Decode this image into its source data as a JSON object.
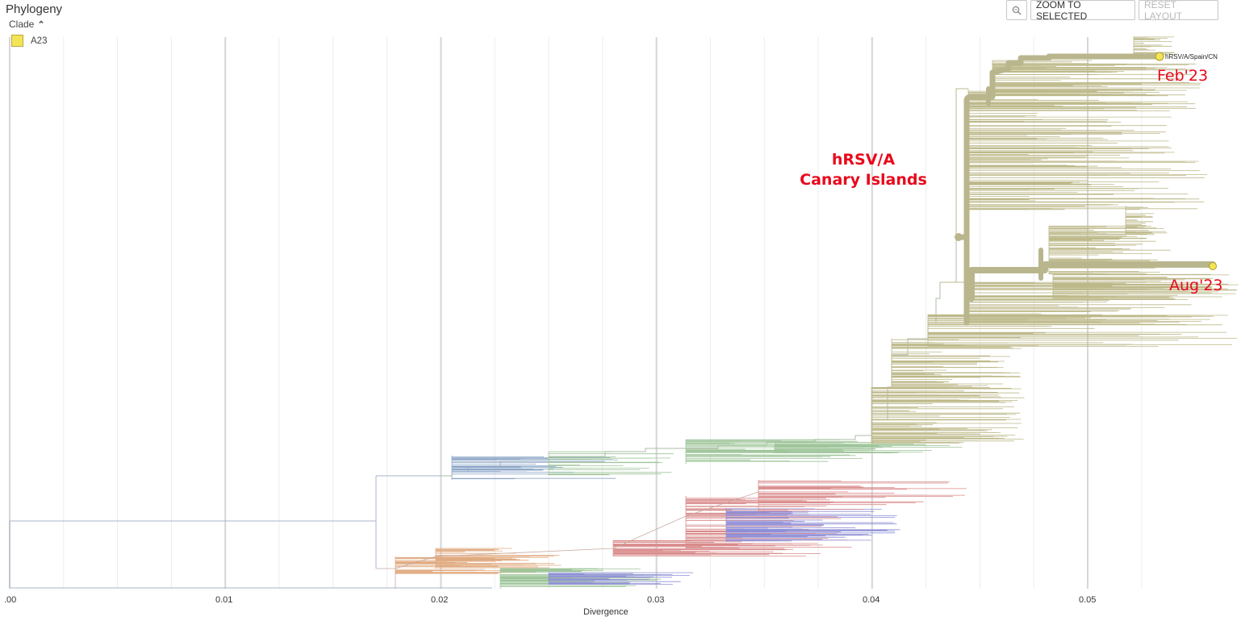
{
  "panel": {
    "title": "Phylogeny",
    "clade_toggle_label": "Clade",
    "legend_item": "A23",
    "legend_color": "#f3e456"
  },
  "toolbar": {
    "zoom_icon": "magnifier-icon",
    "zoom_to_selected": "ZOOM TO SELECTED",
    "reset_layout": "RESET LAYOUT"
  },
  "axis": {
    "title": "Divergence",
    "ticks": [
      ".00",
      "0.01",
      "0.02",
      "0.03",
      "0.04",
      "0.05"
    ]
  },
  "annotations": {
    "group_line1": "hRSV/A",
    "group_line2": "Canary Islands",
    "feb": "Feb'23",
    "aug": "Aug'23",
    "tip_label": "hRSV/A/Spain/CN"
  },
  "colors": {
    "clade_a23": "#bdb98a",
    "highlight": "#f3e456",
    "annotation": "#e8091c",
    "green_lineage": "#9fc59a",
    "blue_lineage": "#8fa8c8",
    "red_lineage": "#d98b8b",
    "purple_lineage": "#8f8fd8",
    "orange_lineage": "#e0aa80"
  }
}
